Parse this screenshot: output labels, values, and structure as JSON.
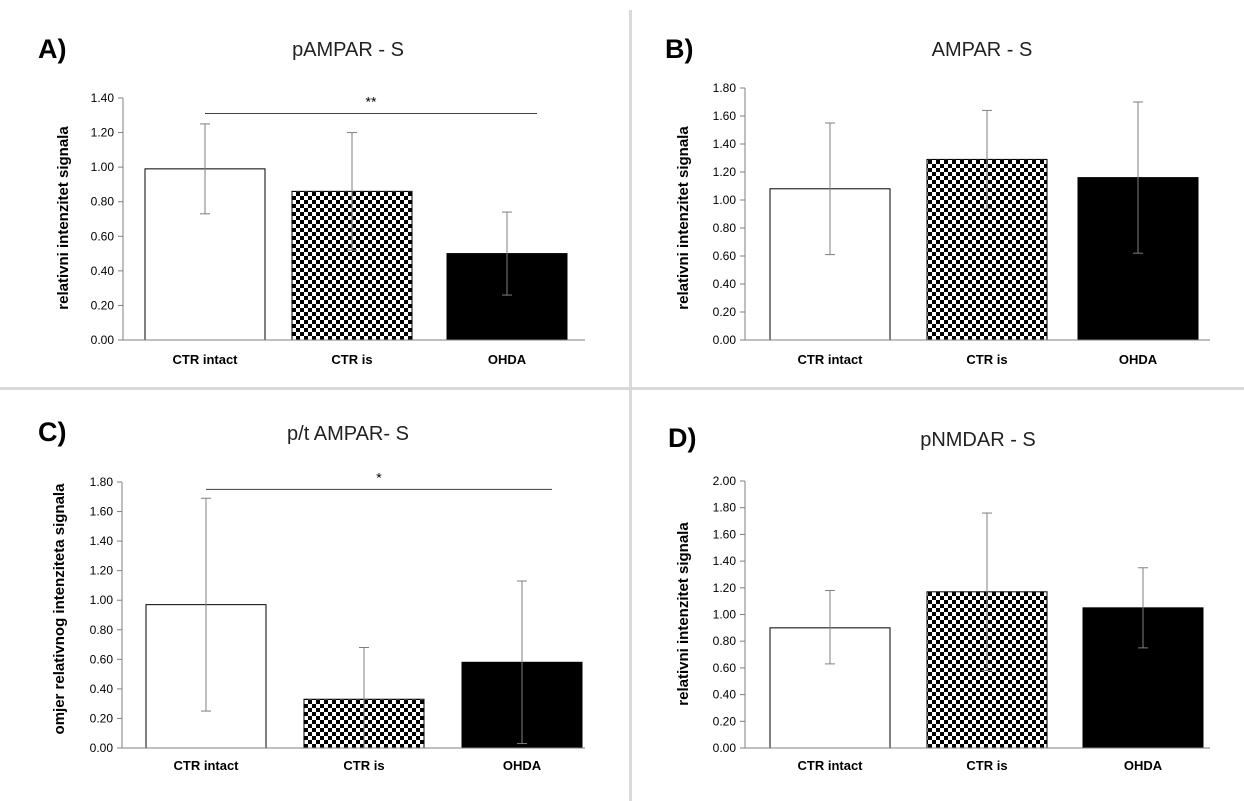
{
  "chart_data": [
    {
      "type": "bar",
      "panel_label": "A)",
      "title": "pAMPAR - S",
      "ylabel": "relativni intenzitet signala",
      "categories": [
        "CTR intact",
        "CTR is",
        "OHDA"
      ],
      "values": [
        0.99,
        0.86,
        0.5
      ],
      "error_upper": [
        1.25,
        1.2,
        0.74
      ],
      "error_lower": [
        0.73,
        0.52,
        0.26
      ],
      "ylim": [
        0,
        1.4
      ],
      "yticks": [
        "0.00",
        "0.20",
        "0.40",
        "0.60",
        "0.80",
        "1.00",
        "1.20",
        "1.40"
      ],
      "bar_fills": [
        "white",
        "checker",
        "black"
      ],
      "significance": {
        "label": "**",
        "from": 0,
        "to": 2,
        "y": 1.31
      },
      "grid": false,
      "legend": "none"
    },
    {
      "type": "bar",
      "panel_label": "B)",
      "title": "AMPAR - S",
      "ylabel": "relativni intenzitet signala",
      "categories": [
        "CTR intact",
        "CTR is",
        "OHDA"
      ],
      "values": [
        1.08,
        1.29,
        1.16
      ],
      "error_upper": [
        1.55,
        1.64,
        1.7
      ],
      "error_lower": [
        0.61,
        0.94,
        0.62
      ],
      "ylim": [
        0,
        1.8
      ],
      "yticks": [
        "0.00",
        "0.20",
        "0.40",
        "0.60",
        "0.80",
        "1.00",
        "1.20",
        "1.40",
        "1.60",
        "1.80"
      ],
      "bar_fills": [
        "white",
        "checker",
        "black"
      ],
      "grid": false,
      "legend": "none"
    },
    {
      "type": "bar",
      "panel_label": "C)",
      "title": "p/t AMPAR- S",
      "ylabel": "omjer relativnog intenziteta signala",
      "categories": [
        "CTR intact",
        "CTR is",
        "OHDA"
      ],
      "values": [
        0.97,
        0.33,
        0.58
      ],
      "error_upper": [
        1.69,
        0.68,
        1.13
      ],
      "error_lower": [
        0.25,
        0.0,
        0.03
      ],
      "ylim": [
        0,
        1.8
      ],
      "yticks": [
        "0.00",
        "0.20",
        "0.40",
        "0.60",
        "0.80",
        "1.00",
        "1.20",
        "1.40",
        "1.60",
        "1.80"
      ],
      "bar_fills": [
        "white",
        "checker",
        "black"
      ],
      "significance": {
        "label": "*",
        "from": 0,
        "to": 2,
        "y": 1.75
      },
      "grid": false,
      "legend": "none"
    },
    {
      "type": "bar",
      "panel_label": "D)",
      "title": "pNMDAR - S",
      "ylabel": "relativni intenzitet signala",
      "categories": [
        "CTR intact",
        "CTR is",
        "OHDA"
      ],
      "values": [
        0.9,
        1.17,
        1.05
      ],
      "error_upper": [
        1.18,
        1.76,
        1.35
      ],
      "error_lower": [
        0.63,
        0.58,
        0.75
      ],
      "ylim": [
        0,
        2.0
      ],
      "yticks": [
        "0.00",
        "0.20",
        "0.40",
        "0.60",
        "0.80",
        "1.00",
        "1.20",
        "1.40",
        "1.60",
        "1.80",
        "2.00"
      ],
      "bar_fills": [
        "white",
        "checker",
        "black"
      ],
      "grid": false,
      "legend": "none"
    }
  ]
}
